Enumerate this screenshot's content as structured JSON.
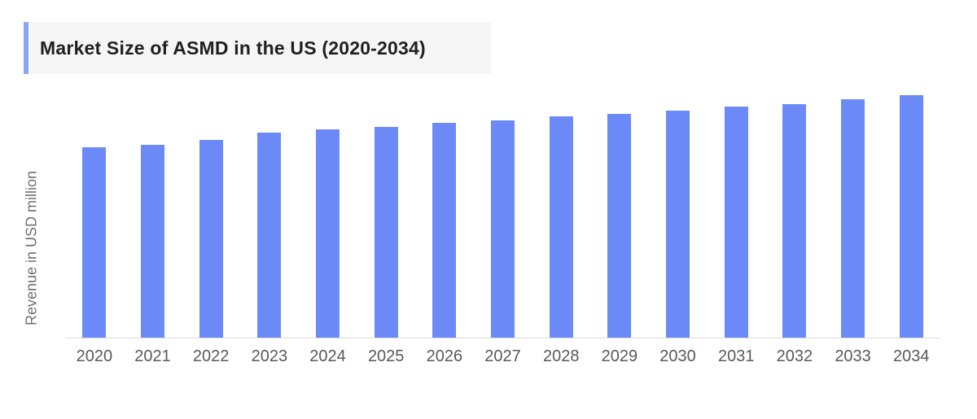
{
  "page": {
    "background_color": "#ffffff"
  },
  "header": {
    "title": "Market Size of ASMD in the US (2020-2034)",
    "accent_color": "#8aa3f2",
    "background_color": "#f6f6f6",
    "text_color": "#202020"
  },
  "chart_data": {
    "type": "bar",
    "title": "Market Size of ASMD in the US (2020-2034)",
    "xlabel": "",
    "ylabel": "Revenue in USD million",
    "categories": [
      "2020",
      "2021",
      "2022",
      "2023",
      "2024",
      "2025",
      "2026",
      "2027",
      "2028",
      "2029",
      "2030",
      "2031",
      "2032",
      "2033",
      "2034"
    ],
    "values": [
      78.4,
      79.5,
      81.5,
      84.6,
      85.9,
      86.9,
      88.6,
      89.6,
      91.3,
      92.3,
      93.6,
      95.3,
      96.3,
      98.3,
      100
    ],
    "value_scale": "relative index estimated from bar heights; y-axis has no tick labels; 2034 = 100",
    "ylim": [
      0,
      100
    ],
    "grid": false,
    "legend": false,
    "bar_color": "#6c8af7",
    "axis_line_color": "#dddddd",
    "tick_label_color": "#595959",
    "ylabel_color": "#707070"
  }
}
